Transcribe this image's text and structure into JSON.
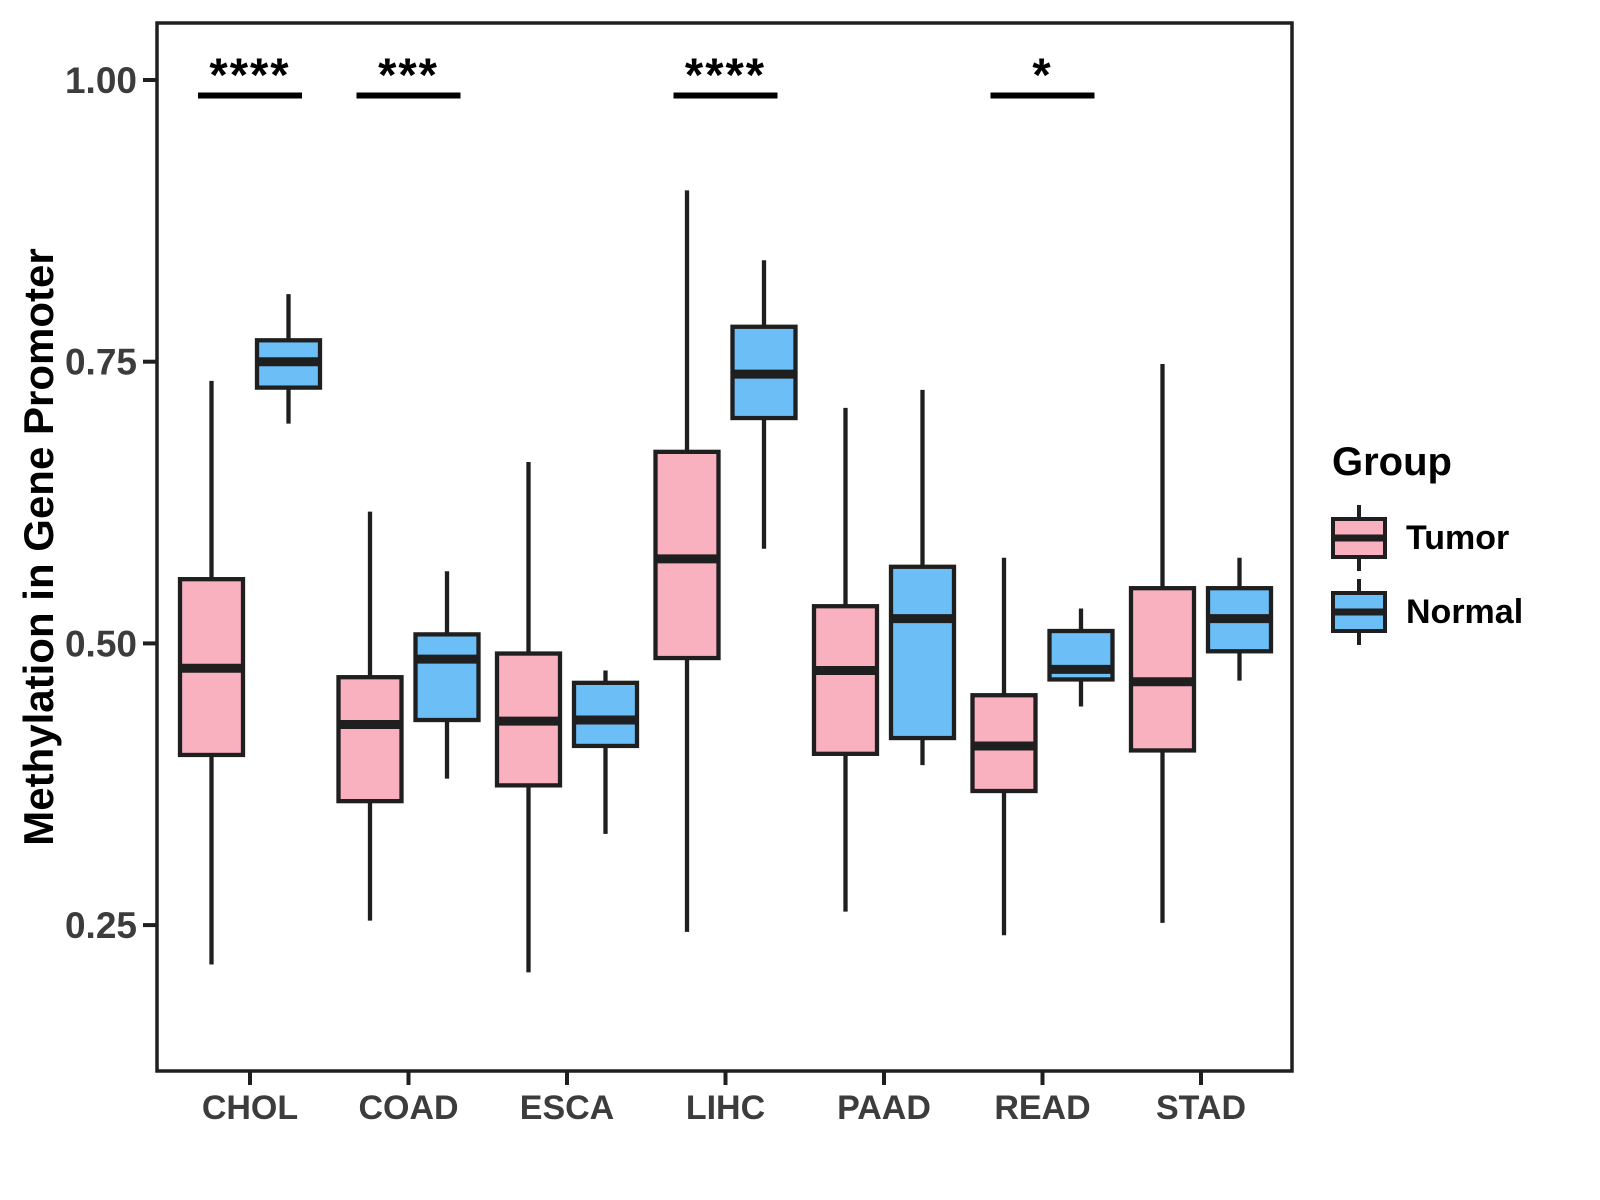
{
  "figure": {
    "background": "#FFFFFF"
  },
  "legend": {
    "title": "Group"
  },
  "chart_data": {
    "type": "boxplot",
    "title": "",
    "xlabel": "",
    "ylabel": "Methylation in Gene Promoter",
    "grid": false,
    "legend_position": "right",
    "ylim": [
      0.12,
      1.05
    ],
    "ytick_values": [
      1.0,
      0.75,
      0.5,
      0.25
    ],
    "ytick_labels": [
      "1.00",
      "0.75",
      "0.50",
      "0.25"
    ],
    "categories": [
      "CHOL",
      "COAD",
      "ESCA",
      "LIHC",
      "PAAD",
      "READ",
      "STAD"
    ],
    "series": [
      {
        "name": "Tumor",
        "fill": "#F9B1C0",
        "boxes": [
          {
            "low": 0.215,
            "q1": 0.401,
            "median": 0.478,
            "q3": 0.557,
            "high": 0.733
          },
          {
            "low": 0.254,
            "q1": 0.36,
            "median": 0.428,
            "q3": 0.47,
            "high": 0.617
          },
          {
            "low": 0.208,
            "q1": 0.374,
            "median": 0.431,
            "q3": 0.491,
            "high": 0.661
          },
          {
            "low": 0.244,
            "q1": 0.487,
            "median": 0.575,
            "q3": 0.67,
            "high": 0.902
          },
          {
            "low": 0.262,
            "q1": 0.402,
            "median": 0.476,
            "q3": 0.533,
            "high": 0.709
          },
          {
            "low": 0.241,
            "q1": 0.369,
            "median": 0.409,
            "q3": 0.454,
            "high": 0.576
          },
          {
            "low": 0.252,
            "q1": 0.405,
            "median": 0.466,
            "q3": 0.549,
            "high": 0.748
          }
        ]
      },
      {
        "name": "Normal",
        "fill": "#6CBEF7",
        "boxes": [
          {
            "low": 0.695,
            "q1": 0.727,
            "median": 0.75,
            "q3": 0.769,
            "high": 0.81
          },
          {
            "low": 0.38,
            "q1": 0.432,
            "median": 0.486,
            "q3": 0.508,
            "high": 0.564
          },
          {
            "low": 0.331,
            "q1": 0.409,
            "median": 0.432,
            "q3": 0.465,
            "high": 0.476
          },
          {
            "low": 0.584,
            "q1": 0.7,
            "median": 0.739,
            "q3": 0.781,
            "high": 0.84
          },
          {
            "low": 0.392,
            "q1": 0.416,
            "median": 0.522,
            "q3": 0.568,
            "high": 0.725
          },
          {
            "low": 0.444,
            "q1": 0.468,
            "median": 0.477,
            "q3": 0.511,
            "high": 0.531
          },
          {
            "low": 0.467,
            "q1": 0.493,
            "median": 0.522,
            "q3": 0.549,
            "high": 0.576
          }
        ]
      }
    ],
    "significance": [
      {
        "category": "CHOL",
        "label": "****"
      },
      {
        "category": "COAD",
        "label": "***"
      },
      {
        "category": "LIHC",
        "label": "****"
      },
      {
        "category": "READ",
        "label": "*"
      }
    ],
    "colors": {
      "stroke": "#1F1F1F",
      "axis_text": "#3C3C3C",
      "text": "#000000"
    }
  }
}
